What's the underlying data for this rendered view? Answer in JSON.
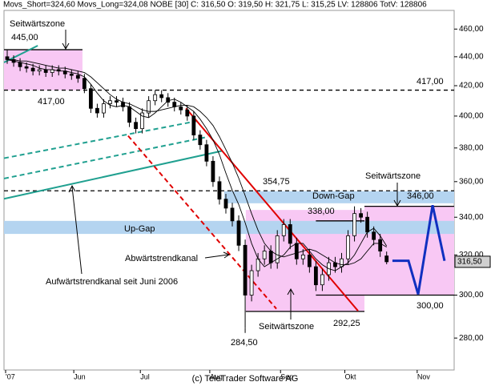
{
  "chart_data": {
    "type": "candlestick",
    "header": "Movs_Short=324,60 Movs_Long=324,08 NOBE [30] C: 316,50 O: 319,50 H: 321,75 L: 315,25 LV: 128806 TotV: 128806",
    "footer": "(c) TeleTrader Software AG",
    "log_scale": true,
    "xlim": [
      0,
      140
    ],
    "ylim": [
      266,
      474
    ],
    "yticks": [
      {
        "value": 280,
        "label": "280,00"
      },
      {
        "value": 300,
        "label": "300,00"
      },
      {
        "value": 320,
        "label": "320,00"
      },
      {
        "value": 340,
        "label": "340,00"
      },
      {
        "value": 360,
        "label": "360,00"
      },
      {
        "value": 380,
        "label": "380,00"
      },
      {
        "value": 400,
        "label": "400,00"
      },
      {
        "value": 420,
        "label": "420,00"
      },
      {
        "value": 440,
        "label": "440,00"
      },
      {
        "value": 460,
        "label": "460,00"
      }
    ],
    "xticks": [
      {
        "value": 0.5,
        "label": "'07"
      },
      {
        "value": 21.7,
        "label": "Jun"
      },
      {
        "value": 42.4,
        "label": "Jul"
      },
      {
        "value": 64,
        "label": "Aug"
      },
      {
        "value": 86,
        "label": "Sep"
      },
      {
        "value": 106,
        "label": "Okt"
      },
      {
        "value": 128.5,
        "label": "Nov"
      }
    ],
    "x": [
      1,
      3,
      5,
      7,
      9,
      11,
      13,
      15,
      17,
      19,
      21,
      23,
      25,
      27,
      29,
      31,
      33,
      35,
      37,
      39,
      41,
      43,
      45,
      47,
      49,
      51,
      53,
      55,
      57,
      59,
      61,
      63,
      65,
      67,
      69,
      71,
      73,
      75,
      77,
      79,
      81,
      83,
      85,
      87,
      89,
      91,
      93,
      95,
      97,
      99,
      101,
      103,
      105,
      107,
      109,
      111,
      113,
      115,
      117,
      119
    ],
    "open": [
      440,
      438,
      436,
      433,
      432,
      430,
      431,
      429,
      431,
      430,
      428,
      427,
      425,
      418,
      405,
      402,
      408,
      410,
      409,
      406,
      396,
      392,
      402,
      410,
      414,
      412,
      409,
      406,
      404,
      400,
      388,
      382,
      372,
      360,
      350,
      345,
      338,
      325,
      300,
      312,
      318,
      322,
      316,
      330,
      336,
      326,
      318,
      320,
      314,
      305,
      310,
      316,
      314,
      318,
      330,
      342,
      340,
      332,
      328,
      319.5
    ],
    "high": [
      445,
      441,
      439,
      436,
      435,
      434,
      434,
      434,
      434,
      433,
      431,
      430,
      428,
      421,
      408,
      411,
      413,
      413,
      412,
      409,
      399,
      405,
      413,
      417,
      417,
      415,
      412,
      409,
      407,
      403,
      391,
      385,
      375,
      363,
      353,
      348,
      341,
      328,
      315,
      321,
      325,
      325,
      333,
      339,
      339,
      329,
      323,
      323,
      317,
      313,
      319,
      319,
      321,
      333,
      346,
      345,
      343,
      335,
      331,
      321.75
    ],
    "low": [
      435,
      433,
      430,
      429,
      427,
      427,
      426,
      426,
      427,
      425,
      424,
      422,
      415,
      402,
      399,
      399,
      405,
      406,
      403,
      393,
      389,
      389,
      399,
      407,
      409,
      406,
      403,
      401,
      397,
      385,
      379,
      369,
      357,
      347,
      342,
      335,
      322,
      284.5,
      297,
      309,
      315,
      313,
      313,
      327,
      323,
      315,
      315,
      311,
      302,
      302,
      307,
      311,
      311,
      315,
      327,
      337,
      329,
      325,
      319,
      315.25
    ],
    "close": [
      438,
      436,
      433,
      432,
      430,
      431,
      429,
      431,
      430,
      428,
      427,
      425,
      418,
      405,
      402,
      408,
      410,
      409,
      406,
      396,
      392,
      402,
      410,
      414,
      412,
      409,
      406,
      404,
      400,
      388,
      382,
      372,
      360,
      350,
      345,
      338,
      325,
      300,
      312,
      318,
      322,
      316,
      330,
      336,
      326,
      318,
      320,
      314,
      305,
      310,
      316,
      314,
      318,
      330,
      342,
      340,
      332,
      328,
      322,
      316.5
    ],
    "last_price": {
      "value": 316.5,
      "label": "316,50"
    },
    "overlays": [
      {
        "color": "#000000",
        "values": [
          438,
          437,
          436,
          435,
          434,
          432,
          431,
          431,
          430,
          430,
          429,
          428,
          426,
          421,
          415,
          410,
          407,
          406,
          407,
          406,
          403,
          400,
          399,
          402,
          406,
          410,
          411,
          409,
          406,
          403,
          398,
          392,
          385,
          376,
          365,
          355,
          347,
          337,
          326,
          318,
          314,
          316,
          318,
          320,
          324,
          326,
          326,
          322,
          318,
          315,
          313,
          312,
          314,
          316,
          320,
          326,
          332,
          334,
          330,
          324.6
        ]
      },
      {
        "color": "#000000",
        "values": [
          438,
          438,
          437,
          437,
          436,
          435,
          434,
          433,
          432,
          432,
          431,
          430,
          429,
          426,
          422,
          418,
          414,
          411,
          409,
          408,
          406,
          404,
          403,
          403,
          404,
          405,
          406,
          407,
          407,
          406,
          403,
          399,
          394,
          387,
          379,
          371,
          362,
          352,
          342,
          333,
          326,
          322,
          320,
          319,
          320,
          321,
          322,
          323,
          322,
          320,
          318,
          316,
          315,
          315,
          316,
          318,
          322,
          326,
          326,
          324.08
        ]
      }
    ],
    "zones": [
      {
        "x": [
          0,
          24.4
        ],
        "y": [
          417,
          445
        ],
        "color": "#f8c8f4"
      },
      {
        "x": [
          75.2,
          112.1
        ],
        "y": [
          292.25,
          344
        ],
        "color": "#f8c8f4"
      },
      {
        "x": [
          112.1,
          140
        ],
        "y": [
          300,
          346
        ],
        "color": "#f8c8f4"
      }
    ],
    "gaps": [
      {
        "name": "Up-Gap",
        "x": [
          0,
          140
        ],
        "y": [
          331,
          338
        ],
        "color": "#b4d4f0"
      },
      {
        "name": "Down-Gap",
        "x": [
          68.5,
          140
        ],
        "y": [
          347.7,
          354.5
        ],
        "color": "#b4d4f0"
      }
    ],
    "levels": [
      {
        "value": 445,
        "label": "445,00",
        "x": [
          0,
          24.4
        ],
        "style": "solid"
      },
      {
        "value": 417,
        "label": "417,00",
        "x": [
          0,
          140
        ],
        "style": "dashed"
      },
      {
        "value": 354.75,
        "label": "354,75",
        "x": [
          0,
          140
        ],
        "style": "dashed"
      },
      {
        "value": 346,
        "label": "346,00",
        "x": [
          112.1,
          140
        ],
        "style": "solid"
      },
      {
        "value": 338,
        "label": "338,00",
        "x": [
          97,
          112.1
        ],
        "style": "solid"
      },
      {
        "value": 300,
        "label": "300,00",
        "x": [
          97,
          140
        ],
        "style": "solid"
      },
      {
        "value": 292.25,
        "label": "292,25",
        "x": [
          75.2,
          112.1
        ],
        "style": "solid"
      }
    ],
    "trendlines": [
      {
        "x": [
          0,
          10.5
        ],
        "y": [
          436,
          447.9
        ],
        "color": "#20a090",
        "style": "solid"
      },
      {
        "x": [
          0,
          68
        ],
        "y": [
          350.2,
          378.3
        ],
        "color": "#20a090",
        "style": "solid"
      },
      {
        "x": [
          0,
          63.5
        ],
        "y": [
          361.8,
          386.9
        ],
        "color": "#20a090",
        "style": "dashed"
      },
      {
        "x": [
          0,
          61
        ],
        "y": [
          373.8,
          397.2
        ],
        "color": "#20a090",
        "style": "dashed"
      },
      {
        "x": [
          56.6,
          110.1
        ],
        "y": [
          405,
          292.5
        ],
        "color": "#e00000",
        "style": "solid"
      },
      {
        "x": [
          38.6,
          84.7
        ],
        "y": [
          387.5,
          293.5
        ],
        "color": "#e00000",
        "style": "dashed"
      }
    ],
    "projection": {
      "x": [
        120.8,
        125.8,
        128.8,
        133.3,
        137
      ],
      "y": [
        317,
        317,
        300.4,
        346.6,
        317
      ],
      "color": "#1030c0"
    },
    "low_label": {
      "value": 284.5,
      "label": "284,50"
    },
    "annotations": [
      "Seitwärtszone",
      "Seitwärtszone",
      "Seitwärtszone",
      "Abwärtstrendkanal",
      "Aufwärtstrendkanal seit Juni 2006"
    ]
  }
}
